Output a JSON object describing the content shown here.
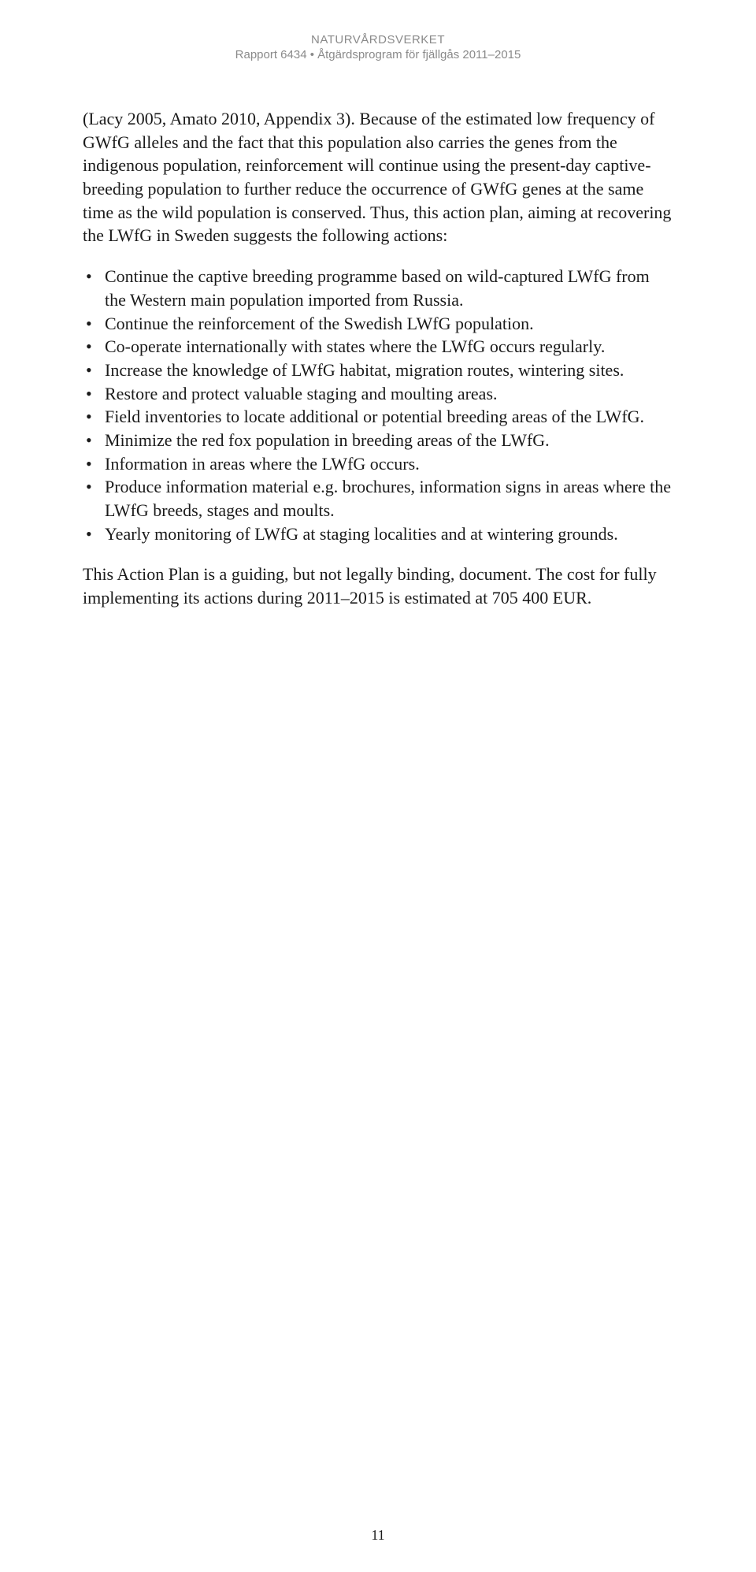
{
  "header": {
    "organization": "NATURVÅRDSVERKET",
    "report": "Rapport 6434 • Åtgärdsprogram för fjällgås 2011–2015"
  },
  "paragraphs": {
    "intro": "(Lacy 2005, Amato 2010, Appendix 3). Because of the estimated low frequency of GWfG alleles and the fact that this population also carries the genes from the indigenous population, reinforcement will continue using the present-day captive-breeding population to further reduce the occurrence of GWfG genes at the same time as the wild population is conserved. Thus, this action plan, aiming at recovering the LWfG in Sweden suggests the following actions:",
    "closing": "This Action Plan is a guiding, but not legally binding, document. The cost for fully implementing its actions during 2011–2015 is estimated at 705 400 EUR."
  },
  "bullets": [
    "Continue the captive breeding programme based on wild-captured LWfG from the Western main population imported from Russia.",
    "Continue the reinforcement of the Swedish LWfG population.",
    "Co-operate internationally with states where the LWfG occurs regularly.",
    "Increase the knowledge of LWfG habitat, migration routes, wintering sites.",
    "Restore and protect valuable staging and moulting areas.",
    "Field inventories to locate additional or potential breeding areas of the LWfG.",
    "Minimize the red fox population in breeding areas of the LWfG.",
    "Information in areas where the LWfG occurs.",
    "Produce information material e.g. brochures, information signs in areas where the LWfG breeds, stages and moults.",
    "Yearly monitoring of LWfG at staging localities and at wintering grounds."
  ],
  "pageNumber": "11"
}
